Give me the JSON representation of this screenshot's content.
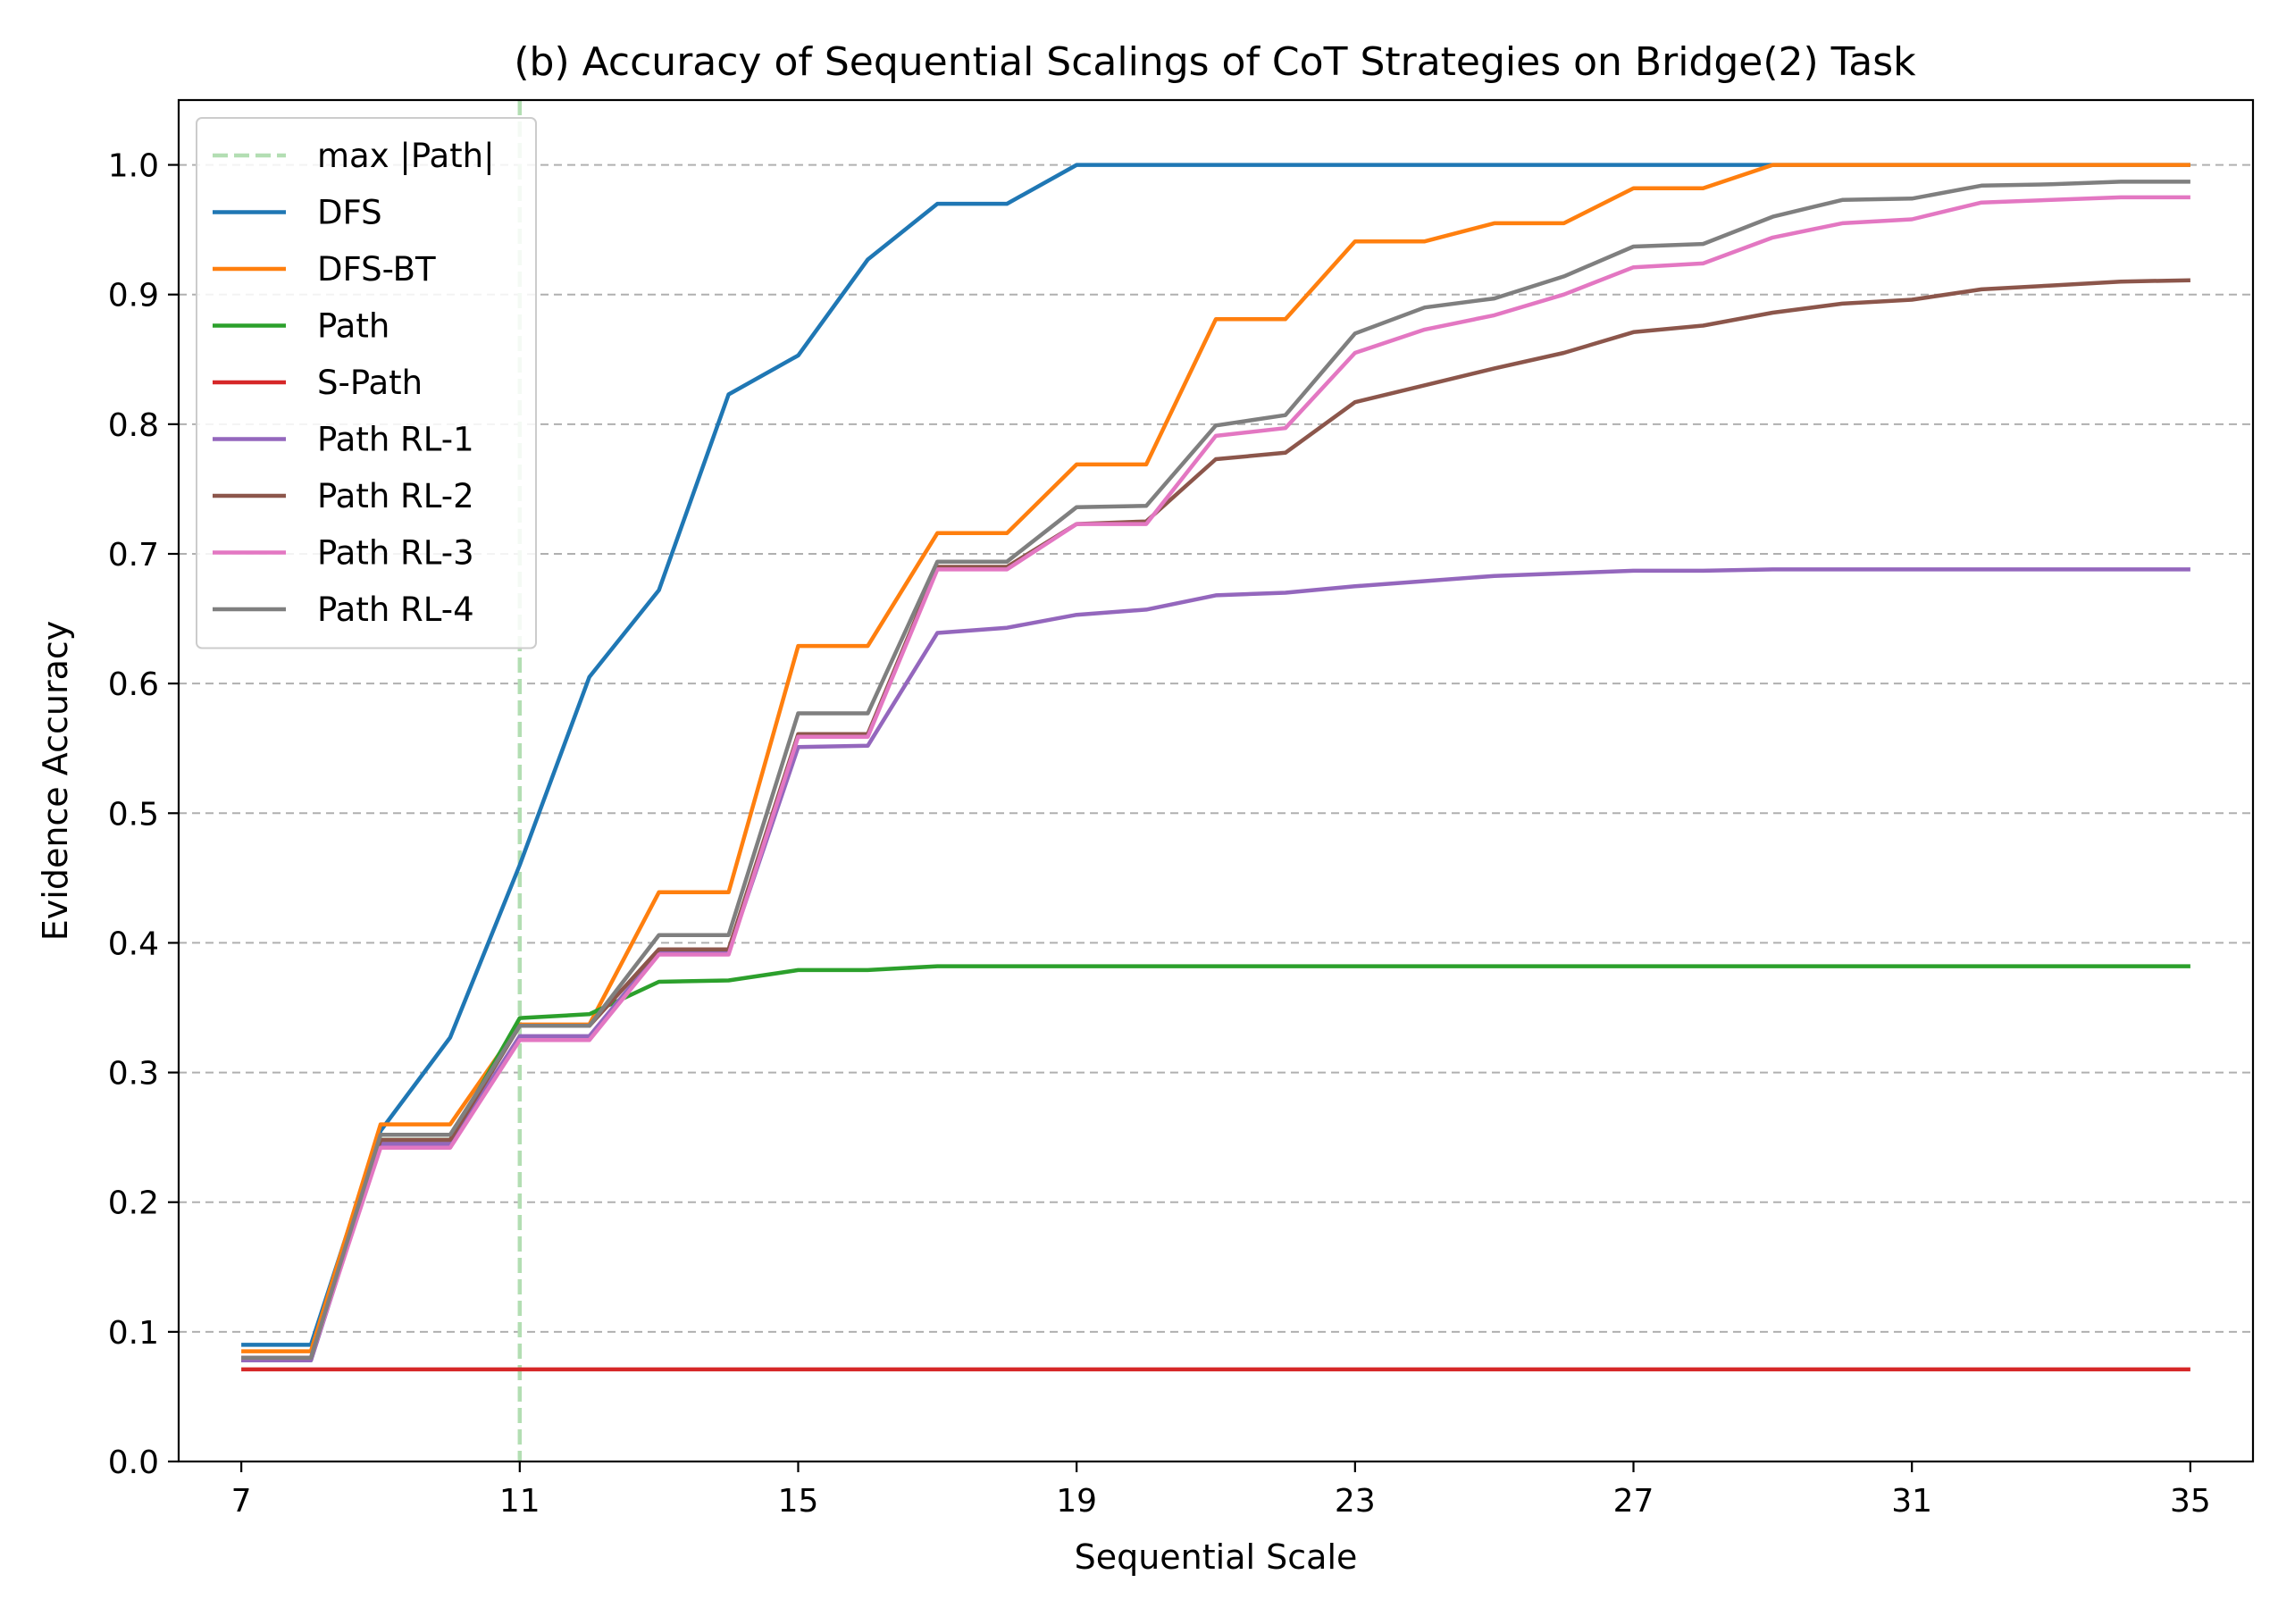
{
  "chart_data": {
    "type": "line",
    "title": "(b) Accuracy of Sequential Scalings of CoT Strategies on Bridge(2) Task",
    "xlabel": "Sequential Scale",
    "ylabel": "Evidence Accuracy",
    "xlim": [
      6.1,
      35.9
    ],
    "ylim": [
      0.0,
      1.05
    ],
    "xticks": [
      7,
      11,
      15,
      19,
      23,
      27,
      31,
      35
    ],
    "yticks": [
      0.0,
      0.1,
      0.2,
      0.3,
      0.4,
      0.5,
      0.6,
      0.7,
      0.8,
      0.9,
      1.0
    ],
    "grid": "y, dashed",
    "legend_position": "upper-left",
    "x": [
      7,
      8,
      9,
      10,
      11,
      12,
      13,
      14,
      15,
      16,
      17,
      18,
      19,
      20,
      21,
      22,
      23,
      24,
      25,
      26,
      27,
      28,
      29,
      30,
      31,
      32,
      33,
      34,
      35
    ],
    "vline": {
      "name": "max |Path|",
      "x": 11,
      "color": "#b3deb3"
    },
    "series": [
      {
        "name": "DFS",
        "color": "#1f77b4",
        "values": [
          0.09,
          0.09,
          0.255,
          0.327,
          0.46,
          0.605,
          0.672,
          0.823,
          0.853,
          0.927,
          0.97,
          0.97,
          1.0,
          1.0,
          1.0,
          1.0,
          1.0,
          1.0,
          1.0,
          1.0,
          1.0,
          1.0,
          1.0,
          1.0,
          1.0,
          1.0,
          1.0,
          1.0,
          1.0
        ]
      },
      {
        "name": "DFS-BT",
        "color": "#ff7f0e",
        "values": [
          0.085,
          0.085,
          0.26,
          0.26,
          0.337,
          0.337,
          0.439,
          0.439,
          0.629,
          0.629,
          0.716,
          0.716,
          0.769,
          0.769,
          0.881,
          0.881,
          0.941,
          0.941,
          0.955,
          0.955,
          0.982,
          0.982,
          1.0,
          1.0,
          1.0,
          1.0,
          1.0,
          1.0,
          1.0
        ]
      },
      {
        "name": "Path",
        "color": "#2ca02c",
        "values": [
          0.078,
          0.078,
          0.248,
          0.248,
          0.342,
          0.345,
          0.37,
          0.371,
          0.379,
          0.379,
          0.382,
          0.382,
          0.382,
          0.382,
          0.382,
          0.382,
          0.382,
          0.382,
          0.382,
          0.382,
          0.382,
          0.382,
          0.382,
          0.382,
          0.382,
          0.382,
          0.382,
          0.382,
          0.382
        ]
      },
      {
        "name": "S-Path",
        "color": "#d62728",
        "values": [
          0.071,
          0.071,
          0.071,
          0.071,
          0.071,
          0.071,
          0.071,
          0.071,
          0.071,
          0.071,
          0.071,
          0.071,
          0.071,
          0.071,
          0.071,
          0.071,
          0.071,
          0.071,
          0.071,
          0.071,
          0.071,
          0.071,
          0.071,
          0.071,
          0.071,
          0.071,
          0.071,
          0.071,
          0.071
        ]
      },
      {
        "name": "Path RL-1",
        "color": "#9467bd",
        "values": [
          0.078,
          0.078,
          0.245,
          0.245,
          0.328,
          0.328,
          0.393,
          0.393,
          0.551,
          0.552,
          0.639,
          0.643,
          0.653,
          0.657,
          0.668,
          0.67,
          0.675,
          0.679,
          0.683,
          0.685,
          0.687,
          0.687,
          0.688,
          0.688,
          0.688,
          0.688,
          0.688,
          0.688,
          0.688
        ]
      },
      {
        "name": "Path RL-2",
        "color": "#8c564b",
        "values": [
          0.08,
          0.08,
          0.248,
          0.248,
          0.336,
          0.336,
          0.395,
          0.395,
          0.561,
          0.561,
          0.69,
          0.69,
          0.723,
          0.725,
          0.773,
          0.778,
          0.817,
          0.83,
          0.843,
          0.855,
          0.871,
          0.876,
          0.886,
          0.893,
          0.896,
          0.904,
          0.907,
          0.91,
          0.911
        ]
      },
      {
        "name": "Path RL-3",
        "color": "#e377c2",
        "values": [
          0.08,
          0.08,
          0.242,
          0.242,
          0.325,
          0.325,
          0.391,
          0.391,
          0.559,
          0.559,
          0.688,
          0.688,
          0.723,
          0.723,
          0.791,
          0.797,
          0.855,
          0.873,
          0.884,
          0.9,
          0.921,
          0.924,
          0.944,
          0.955,
          0.958,
          0.971,
          0.973,
          0.975,
          0.975
        ]
      },
      {
        "name": "Path RL-4",
        "color": "#7f7f7f",
        "values": [
          0.08,
          0.08,
          0.252,
          0.252,
          0.336,
          0.336,
          0.406,
          0.406,
          0.577,
          0.577,
          0.694,
          0.694,
          0.736,
          0.737,
          0.799,
          0.807,
          0.87,
          0.89,
          0.897,
          0.914,
          0.937,
          0.939,
          0.96,
          0.973,
          0.974,
          0.984,
          0.985,
          0.987,
          0.987
        ]
      }
    ]
  }
}
